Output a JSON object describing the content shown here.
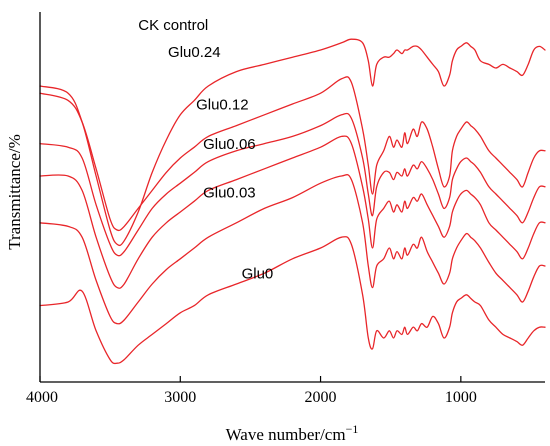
{
  "chart_data": {
    "type": "line",
    "title": "",
    "xlabel": "Wave number/cm",
    "xlabel_sup": "−1",
    "ylabel": "Transmittance/%",
    "xlim": [
      4000,
      400
    ],
    "x_reversed": true,
    "x_ticks": [
      4000,
      3000,
      2000,
      1000
    ],
    "x_tick_labels": [
      "4000",
      "3000",
      "2000",
      "1000"
    ],
    "y_ticks_shown": false,
    "grid": false,
    "line_color": "#e8262a",
    "keypoints_x": [
      4000,
      3800,
      3700,
      3600,
      3500,
      3450,
      3400,
      3300,
      3200,
      3100,
      3000,
      2900,
      2800,
      2600,
      2400,
      2200,
      2000,
      1850,
      1780,
      1700,
      1660,
      1630,
      1600,
      1550,
      1510,
      1480,
      1455,
      1420,
      1400,
      1380,
      1340,
      1310,
      1280,
      1240,
      1200,
      1160,
      1120,
      1080,
      1060,
      1030,
      1000,
      960,
      930,
      900,
      860,
      800,
      750,
      700,
      650,
      600,
      560,
      520,
      480,
      440,
      400
    ],
    "series": [
      {
        "name": "CK control",
        "label": "CK control",
        "y": [
          0.8,
          0.78,
          0.7,
          0.55,
          0.4,
          0.36,
          0.37,
          0.45,
          0.56,
          0.65,
          0.72,
          0.76,
          0.8,
          0.84,
          0.86,
          0.88,
          0.9,
          0.92,
          0.93,
          0.92,
          0.87,
          0.8,
          0.86,
          0.88,
          0.88,
          0.89,
          0.9,
          0.89,
          0.9,
          0.9,
          0.91,
          0.91,
          0.9,
          0.88,
          0.86,
          0.84,
          0.8,
          0.83,
          0.87,
          0.9,
          0.91,
          0.92,
          0.91,
          0.9,
          0.87,
          0.86,
          0.85,
          0.86,
          0.85,
          0.84,
          0.83,
          0.86,
          0.9,
          0.91,
          0.9
        ]
      },
      {
        "name": "Glu0.24",
        "label": "Glu0.24",
        "y": [
          0.78,
          0.76,
          0.7,
          0.57,
          0.43,
          0.4,
          0.41,
          0.46,
          0.51,
          0.56,
          0.6,
          0.63,
          0.66,
          0.69,
          0.72,
          0.75,
          0.78,
          0.82,
          0.81,
          0.68,
          0.58,
          0.5,
          0.58,
          0.62,
          0.66,
          0.63,
          0.65,
          0.63,
          0.67,
          0.64,
          0.68,
          0.66,
          0.7,
          0.68,
          0.63,
          0.57,
          0.52,
          0.55,
          0.62,
          0.66,
          0.68,
          0.7,
          0.69,
          0.68,
          0.66,
          0.62,
          0.6,
          0.58,
          0.56,
          0.54,
          0.52,
          0.56,
          0.6,
          0.62,
          0.62
        ]
      },
      {
        "name": "Glu0.12",
        "label": "Glu0.12",
        "y": [
          0.64,
          0.63,
          0.6,
          0.47,
          0.36,
          0.33,
          0.34,
          0.4,
          0.46,
          0.5,
          0.53,
          0.56,
          0.59,
          0.62,
          0.64,
          0.66,
          0.69,
          0.72,
          0.71,
          0.6,
          0.5,
          0.44,
          0.52,
          0.56,
          0.56,
          0.54,
          0.56,
          0.55,
          0.57,
          0.55,
          0.58,
          0.57,
          0.59,
          0.57,
          0.54,
          0.5,
          0.46,
          0.49,
          0.54,
          0.57,
          0.59,
          0.6,
          0.59,
          0.58,
          0.56,
          0.52,
          0.5,
          0.48,
          0.46,
          0.44,
          0.42,
          0.45,
          0.49,
          0.52,
          0.52
        ]
      },
      {
        "name": "Glu0.06",
        "label": "Glu0.06",
        "y": [
          0.55,
          0.55,
          0.51,
          0.38,
          0.27,
          0.24,
          0.25,
          0.32,
          0.38,
          0.42,
          0.45,
          0.48,
          0.51,
          0.54,
          0.57,
          0.6,
          0.63,
          0.66,
          0.64,
          0.52,
          0.43,
          0.35,
          0.43,
          0.46,
          0.48,
          0.45,
          0.47,
          0.45,
          0.48,
          0.46,
          0.49,
          0.48,
          0.5,
          0.47,
          0.44,
          0.41,
          0.38,
          0.41,
          0.45,
          0.48,
          0.5,
          0.51,
          0.5,
          0.49,
          0.47,
          0.42,
          0.4,
          0.38,
          0.36,
          0.34,
          0.32,
          0.35,
          0.39,
          0.42,
          0.42
        ]
      },
      {
        "name": "Glu0.03",
        "label": "Glu0.03",
        "y": [
          0.42,
          0.41,
          0.38,
          0.26,
          0.16,
          0.14,
          0.15,
          0.2,
          0.25,
          0.29,
          0.32,
          0.35,
          0.38,
          0.42,
          0.46,
          0.49,
          0.53,
          0.55,
          0.54,
          0.42,
          0.3,
          0.24,
          0.3,
          0.32,
          0.35,
          0.32,
          0.34,
          0.32,
          0.35,
          0.33,
          0.36,
          0.35,
          0.38,
          0.34,
          0.31,
          0.28,
          0.25,
          0.28,
          0.32,
          0.35,
          0.37,
          0.39,
          0.38,
          0.37,
          0.35,
          0.31,
          0.28,
          0.26,
          0.24,
          0.22,
          0.2,
          0.23,
          0.27,
          0.3,
          0.3
        ]
      },
      {
        "name": "Glu0",
        "label": "Glu0",
        "y": [
          0.19,
          0.2,
          0.23,
          0.12,
          0.04,
          0.03,
          0.04,
          0.08,
          0.11,
          0.14,
          0.17,
          0.19,
          0.22,
          0.25,
          0.28,
          0.32,
          0.35,
          0.38,
          0.36,
          0.22,
          0.1,
          0.07,
          0.12,
          0.1,
          0.12,
          0.1,
          0.12,
          0.11,
          0.13,
          0.11,
          0.13,
          0.12,
          0.14,
          0.13,
          0.16,
          0.14,
          0.1,
          0.13,
          0.17,
          0.2,
          0.21,
          0.22,
          0.21,
          0.2,
          0.19,
          0.15,
          0.13,
          0.11,
          0.1,
          0.09,
          0.08,
          0.1,
          0.12,
          0.13,
          0.13
        ]
      }
    ]
  }
}
